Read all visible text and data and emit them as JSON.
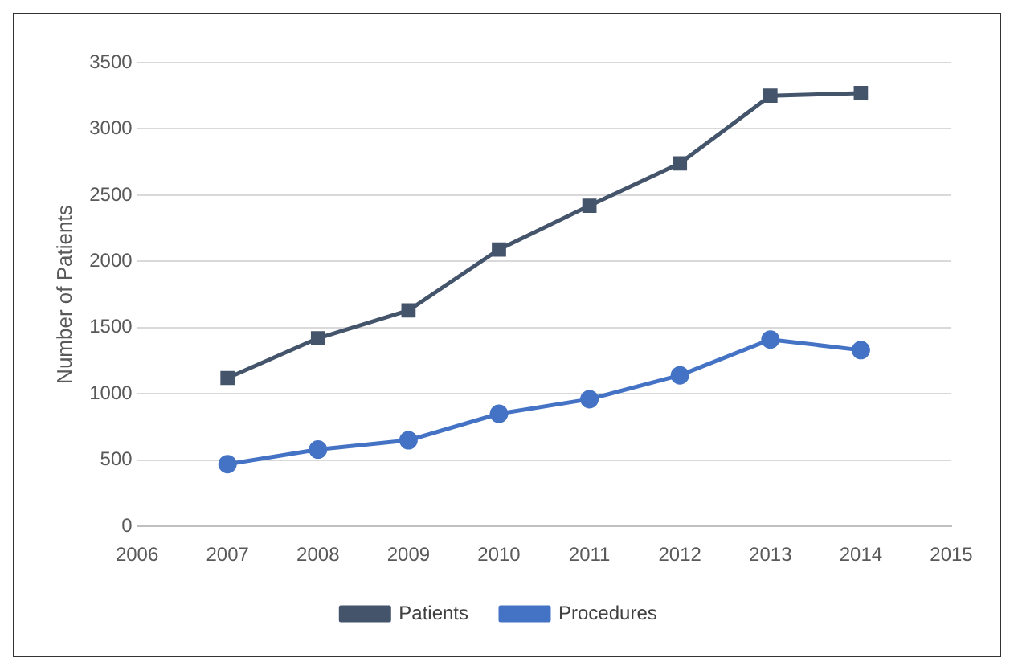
{
  "chart_data": {
    "type": "line",
    "ylabel": "Number of Patients",
    "x": [
      2007,
      2008,
      2009,
      2010,
      2011,
      2012,
      2013,
      2014
    ],
    "series": [
      {
        "name": "Patients",
        "color": "#44546a",
        "marker": "square",
        "values": [
          1120,
          1420,
          1630,
          2090,
          2420,
          2740,
          3250,
          3270
        ]
      },
      {
        "name": "Procedures",
        "color": "#4472c4",
        "marker": "circle",
        "values": [
          470,
          580,
          650,
          850,
          960,
          1140,
          1410,
          1330
        ]
      }
    ],
    "xlim": [
      2006,
      2015
    ],
    "xticks": [
      2006,
      2007,
      2008,
      2009,
      2010,
      2011,
      2012,
      2013,
      2014,
      2015
    ],
    "ylim": [
      0,
      3500
    ],
    "yticks": [
      0,
      500,
      1000,
      1500,
      2000,
      2500,
      3000,
      3500
    ],
    "grid": "y",
    "legend": "bottom"
  }
}
